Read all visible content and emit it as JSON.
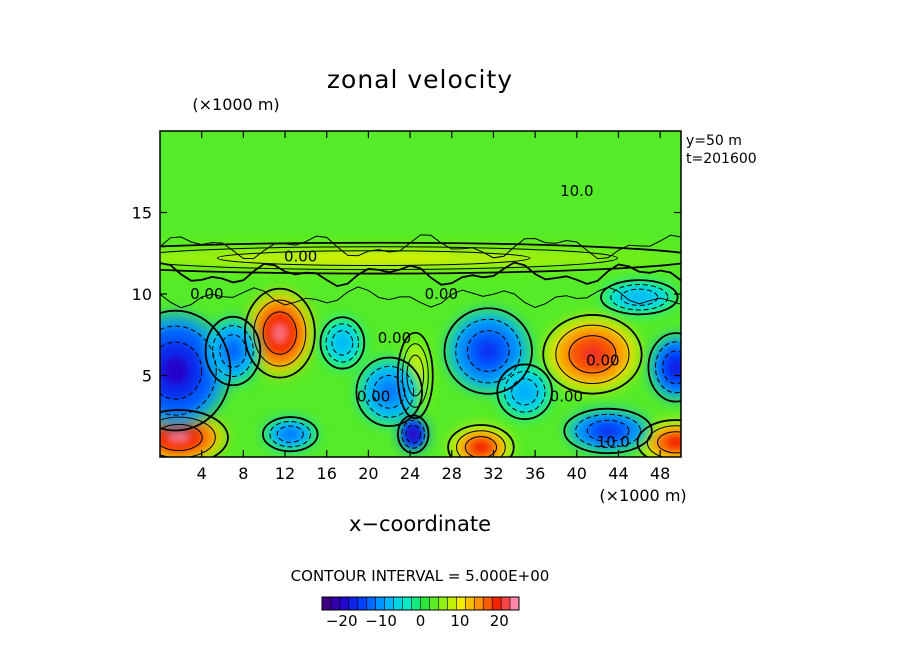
{
  "chart_data": {
    "type": "heatmap",
    "title": "zonal velocity",
    "xlabel": "x−coordinate",
    "x_unit": "(×1000 m)",
    "y_unit": "(×1000 m)",
    "xlim": [
      0,
      50
    ],
    "ylim": [
      0,
      20
    ],
    "x_ticks": [
      4,
      8,
      12,
      16,
      20,
      24,
      28,
      32,
      36,
      40,
      44,
      48
    ],
    "y_ticks": [
      5,
      10,
      15
    ],
    "annotations": [
      "y=50 m",
      "t=201600"
    ],
    "contour_interval_label": "CONTOUR INTERVAL = 5.000E+00",
    "contour_labels": [
      "0.00",
      "0.00",
      "0.00",
      "0.00",
      "0.00",
      "0.00",
      "0.00",
      "10.0",
      "10.0"
    ],
    "colorbar": {
      "ticks": [
        -20,
        -10,
        0,
        10,
        20
      ],
      "tick_labels": [
        "−20",
        "−10",
        "0",
        "10",
        "20"
      ],
      "range": [
        -25,
        25
      ]
    },
    "blobs": [
      {
        "x": 11.5,
        "y": 7.6,
        "rx": 3.2,
        "ry": 2.6,
        "value": 23
      },
      {
        "x": 24.5,
        "y": 5.0,
        "rx": 1.6,
        "ry": 2.5,
        "value": 10
      },
      {
        "x": 41.5,
        "y": 6.3,
        "rx": 4.5,
        "ry": 2.3,
        "value": 21
      },
      {
        "x": 1.8,
        "y": 1.2,
        "rx": 4.5,
        "ry": 1.6,
        "value": 23
      },
      {
        "x": 30.8,
        "y": 0.6,
        "rx": 3.0,
        "ry": 1.3,
        "value": 20
      },
      {
        "x": 49.5,
        "y": 0.9,
        "rx": 3.5,
        "ry": 1.3,
        "value": 20
      },
      {
        "x": 20.5,
        "y": 12.2,
        "rx": 30.0,
        "ry": 0.9,
        "value": 9
      },
      {
        "x": 1.5,
        "y": 5.3,
        "rx": 5.0,
        "ry": 3.5,
        "value": -20
      },
      {
        "x": 7.0,
        "y": 6.5,
        "rx": 2.5,
        "ry": 2.0,
        "value": -13
      },
      {
        "x": 22.0,
        "y": 4.0,
        "rx": 3.0,
        "ry": 2.0,
        "value": -12
      },
      {
        "x": 31.5,
        "y": 6.5,
        "rx": 4.0,
        "ry": 2.5,
        "value": -16
      },
      {
        "x": 24.3,
        "y": 1.4,
        "rx": 1.4,
        "ry": 1.1,
        "value": -22
      },
      {
        "x": 12.5,
        "y": 1.4,
        "rx": 2.5,
        "ry": 1.0,
        "value": -12
      },
      {
        "x": 43.0,
        "y": 1.6,
        "rx": 4.0,
        "ry": 1.3,
        "value": -16
      },
      {
        "x": 49.5,
        "y": 5.5,
        "rx": 2.5,
        "ry": 2.0,
        "value": -18
      },
      {
        "x": 46.0,
        "y": 9.8,
        "rx": 3.5,
        "ry": 1.0,
        "value": -8
      },
      {
        "x": 17.5,
        "y": 7.0,
        "rx": 2.0,
        "ry": 1.5,
        "value": -8
      },
      {
        "x": 35.0,
        "y": 4.0,
        "rx": 2.5,
        "ry": 1.6,
        "value": -9
      }
    ],
    "grid": false,
    "legend": "bottom"
  }
}
